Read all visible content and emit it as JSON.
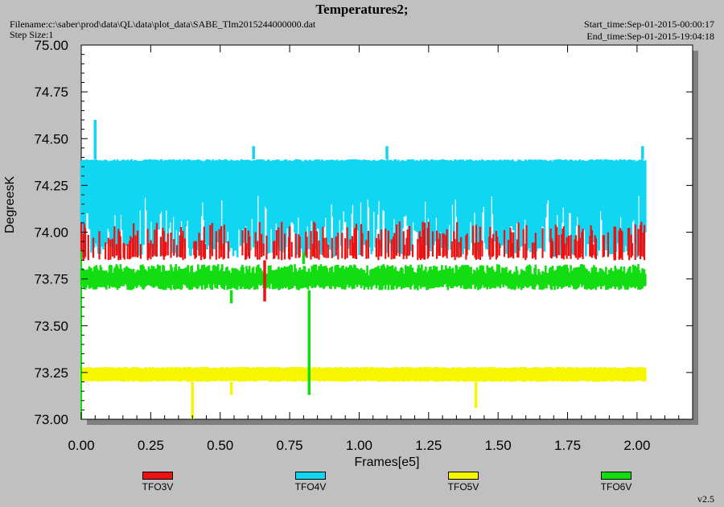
{
  "header": {
    "title": "Temperatures2;",
    "filename": "Filename:c:\\saber\\prod\\data\\QL\\data\\plot_data\\SABE_Tlm2015244000000.dat",
    "step_size": "Step Size:1",
    "start_time": "Start_time:Sep-01-2015-00:00:17",
    "end_time": "End_time:Sep-01-2015-19:04:18",
    "version": "v2.5"
  },
  "colors": {
    "background": "#c0c0c0",
    "plot_area": "#ffffff",
    "TFO3V": "#ee1111",
    "TFO4V": "#11d6f2",
    "TFO5V": "#f6f600",
    "TFO6V": "#11dd11"
  },
  "chart_data": {
    "type": "line",
    "title": "Temperatures2;",
    "xlabel": "Frames[e5]",
    "ylabel": "DegreesK",
    "xlim": [
      0,
      2.2
    ],
    "ylim": [
      73.0,
      75.0
    ],
    "x_ticks": [
      "0.00",
      "0.25",
      "0.50",
      "0.75",
      "1.00",
      "1.25",
      "1.50",
      "1.75",
      "2.00"
    ],
    "y_ticks": [
      "73.00",
      "73.25",
      "73.50",
      "73.75",
      "74.00",
      "74.25",
      "74.50",
      "74.75",
      "75.00"
    ],
    "grid": false,
    "legend_position": "bottom",
    "x_range_data": [
      0,
      2.03
    ],
    "series": [
      {
        "name": "TFO3V",
        "band": [
          73.85,
          74.03
        ],
        "spikes": [
          [
            0.66,
            73.63
          ],
          [
            1.92,
            74.03
          ]
        ]
      },
      {
        "name": "TFO4V",
        "band": [
          73.78,
          74.39
        ],
        "spikes": [
          [
            0.05,
            74.6
          ],
          [
            0.62,
            74.46
          ],
          [
            1.1,
            74.46
          ],
          [
            2.02,
            74.46
          ]
        ]
      },
      {
        "name": "TFO5V",
        "band": [
          73.2,
          73.28
        ],
        "spikes": [
          [
            0.4,
            73.0
          ],
          [
            0.54,
            73.13
          ],
          [
            1.42,
            73.06
          ]
        ]
      },
      {
        "name": "TFO6V",
        "band": [
          73.69,
          73.83
        ],
        "spikes": [
          [
            0.54,
            73.62
          ],
          [
            0.82,
            73.13
          ],
          [
            0.8,
            73.98
          ]
        ]
      }
    ]
  }
}
